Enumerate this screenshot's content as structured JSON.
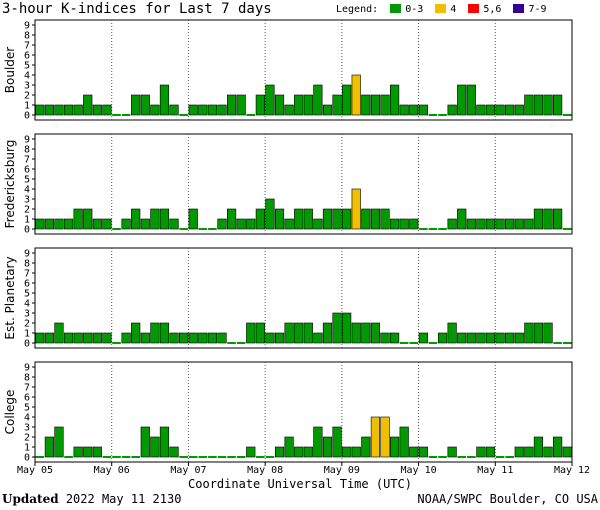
{
  "header": {
    "title": "3-hour K-indices for Last 7 days",
    "legend_label": "Legend:",
    "legend": [
      {
        "label": "0-3",
        "color": "#009900"
      },
      {
        "label": "4",
        "color": "#f0c000"
      },
      {
        "label": "5,6",
        "color": "#ff0000"
      },
      {
        "label": "7-9",
        "color": "#330099"
      }
    ]
  },
  "footer": {
    "updated_label": "Updated",
    "updated_time": "2022 May 11 2130",
    "credit": "NOAA/SWPC Boulder, CO USA"
  },
  "chart_data": {
    "type": "bar",
    "xlabel": "Coordinate Universal Time (UTC)",
    "x_ticks": [
      "May 05",
      "May 06",
      "May 07",
      "May 08",
      "May 09",
      "May 10",
      "May 11",
      "May 12"
    ],
    "ylim": [
      0,
      9
    ],
    "y_ticks": [
      "0",
      "1",
      "2",
      "3",
      "4",
      "5",
      "6",
      "7",
      "8",
      "9"
    ],
    "interval_hours": 3,
    "color_scale": {
      "0-3": "#009900",
      "4": "#f0c000",
      "5,6": "#ff0000",
      "7-9": "#330099"
    },
    "series": [
      {
        "name": "Boulder",
        "values": [
          1,
          1,
          1,
          1,
          1,
          2,
          1,
          1,
          0,
          0,
          2,
          2,
          1,
          3,
          1,
          0,
          1,
          1,
          1,
          1,
          2,
          2,
          0,
          2,
          3,
          2,
          1,
          2,
          2,
          3,
          1,
          2,
          3,
          4,
          2,
          2,
          2,
          3,
          1,
          1,
          1,
          0,
          0,
          1,
          3,
          3,
          1,
          1,
          1,
          1,
          1,
          2,
          2,
          2,
          2,
          0
        ]
      },
      {
        "name": "Fredericksburg",
        "values": [
          1,
          1,
          1,
          1,
          2,
          2,
          1,
          1,
          0,
          1,
          2,
          1,
          2,
          2,
          1,
          0,
          2,
          0,
          0,
          1,
          2,
          1,
          1,
          2,
          3,
          2,
          1,
          2,
          2,
          1,
          2,
          2,
          2,
          4,
          2,
          2,
          2,
          1,
          1,
          1,
          0,
          0,
          0,
          1,
          2,
          1,
          1,
          1,
          1,
          1,
          1,
          1,
          2,
          2,
          2,
          0
        ]
      },
      {
        "name": "Est. Planetary",
        "values": [
          1,
          1,
          2,
          1,
          1,
          1,
          1,
          1,
          0,
          1,
          2,
          1,
          2,
          2,
          1,
          1,
          1,
          1,
          1,
          1,
          0,
          0,
          2,
          2,
          1,
          1,
          2,
          2,
          2,
          1,
          2,
          3,
          3,
          2,
          2,
          2,
          1,
          1,
          0,
          0,
          1,
          0,
          1,
          2,
          1,
          1,
          1,
          1,
          1,
          1,
          1,
          2,
          2,
          2,
          0,
          0
        ]
      },
      {
        "name": "College",
        "values": [
          0,
          2,
          3,
          0,
          1,
          1,
          1,
          0,
          0,
          0,
          0,
          3,
          2,
          3,
          1,
          0,
          0,
          0,
          0,
          0,
          0,
          0,
          1,
          0,
          0,
          1,
          2,
          1,
          1,
          3,
          2,
          3,
          1,
          1,
          2,
          4,
          4,
          2,
          3,
          1,
          1,
          0,
          0,
          1,
          0,
          0,
          1,
          1,
          0,
          0,
          1,
          1,
          2,
          1,
          2,
          1
        ]
      }
    ]
  }
}
